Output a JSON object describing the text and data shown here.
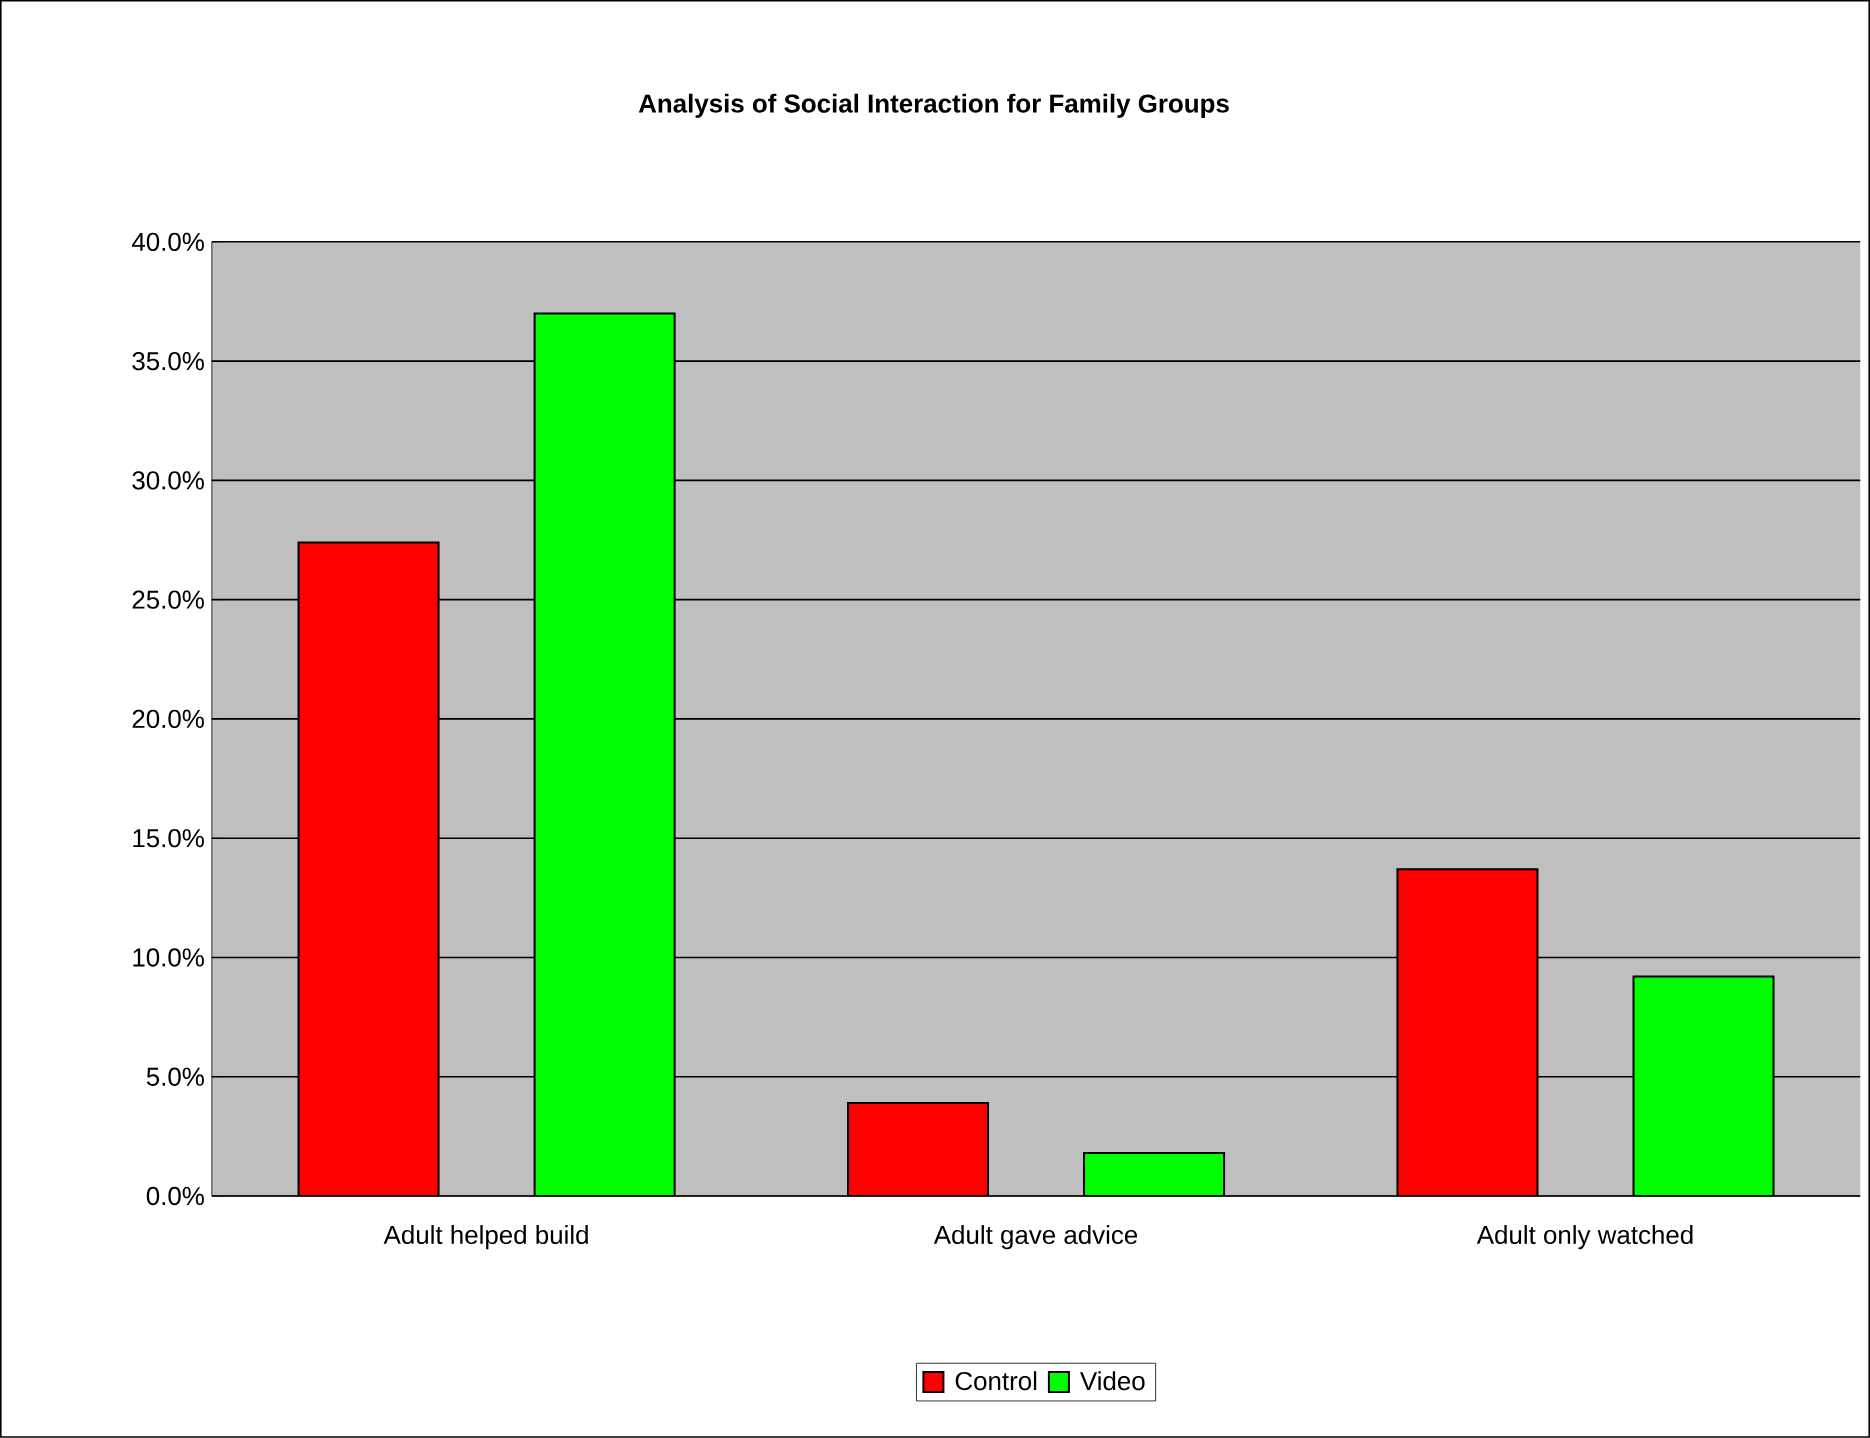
{
  "chart_data": {
    "type": "bar",
    "title": "Analysis of Social Interaction for Family Groups",
    "categories": [
      "Adult helped build",
      "Adult gave advice",
      "Adult only watched"
    ],
    "series": [
      {
        "name": "Control",
        "color": "#ff0000",
        "values": [
          27.4,
          3.9,
          13.7
        ]
      },
      {
        "name": "Video",
        "color": "#00ff00",
        "values": [
          37.0,
          1.8,
          9.2
        ]
      }
    ],
    "ylim": [
      0,
      40
    ],
    "yticks": [
      {
        "value": 0,
        "label": "0.0%"
      },
      {
        "value": 5,
        "label": "5.0%"
      },
      {
        "value": 10,
        "label": "10.0%"
      },
      {
        "value": 15,
        "label": "15.0%"
      },
      {
        "value": 20,
        "label": "20.0%"
      },
      {
        "value": 25,
        "label": "25.0%"
      },
      {
        "value": 30,
        "label": "30.0%"
      },
      {
        "value": 35,
        "label": "35.0%"
      },
      {
        "value": 40,
        "label": "40.0%"
      }
    ],
    "grid": "y",
    "legend": "bottom"
  }
}
